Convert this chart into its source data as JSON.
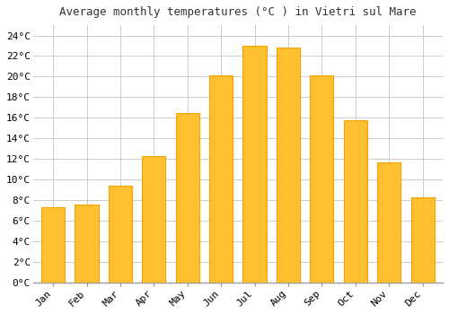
{
  "title": "Average monthly temperatures (°C ) in Vietri sul Mare",
  "months": [
    "Jan",
    "Feb",
    "Mar",
    "Apr",
    "May",
    "Jun",
    "Jul",
    "Aug",
    "Sep",
    "Oct",
    "Nov",
    "Dec"
  ],
  "values": [
    7.3,
    7.6,
    9.4,
    12.3,
    16.5,
    20.1,
    23.0,
    22.8,
    20.1,
    15.8,
    11.7,
    8.3
  ],
  "bar_color": "#FFC030",
  "bar_edge_color": "#F5A000",
  "background_color": "#FFFFFF",
  "plot_bg_color": "#FFFFFF",
  "grid_color": "#CCCCCC",
  "ylim": [
    0,
    25
  ],
  "yticks": [
    0,
    2,
    4,
    6,
    8,
    10,
    12,
    14,
    16,
    18,
    20,
    22,
    24
  ],
  "title_fontsize": 9,
  "tick_fontsize": 8,
  "font_family": "monospace"
}
